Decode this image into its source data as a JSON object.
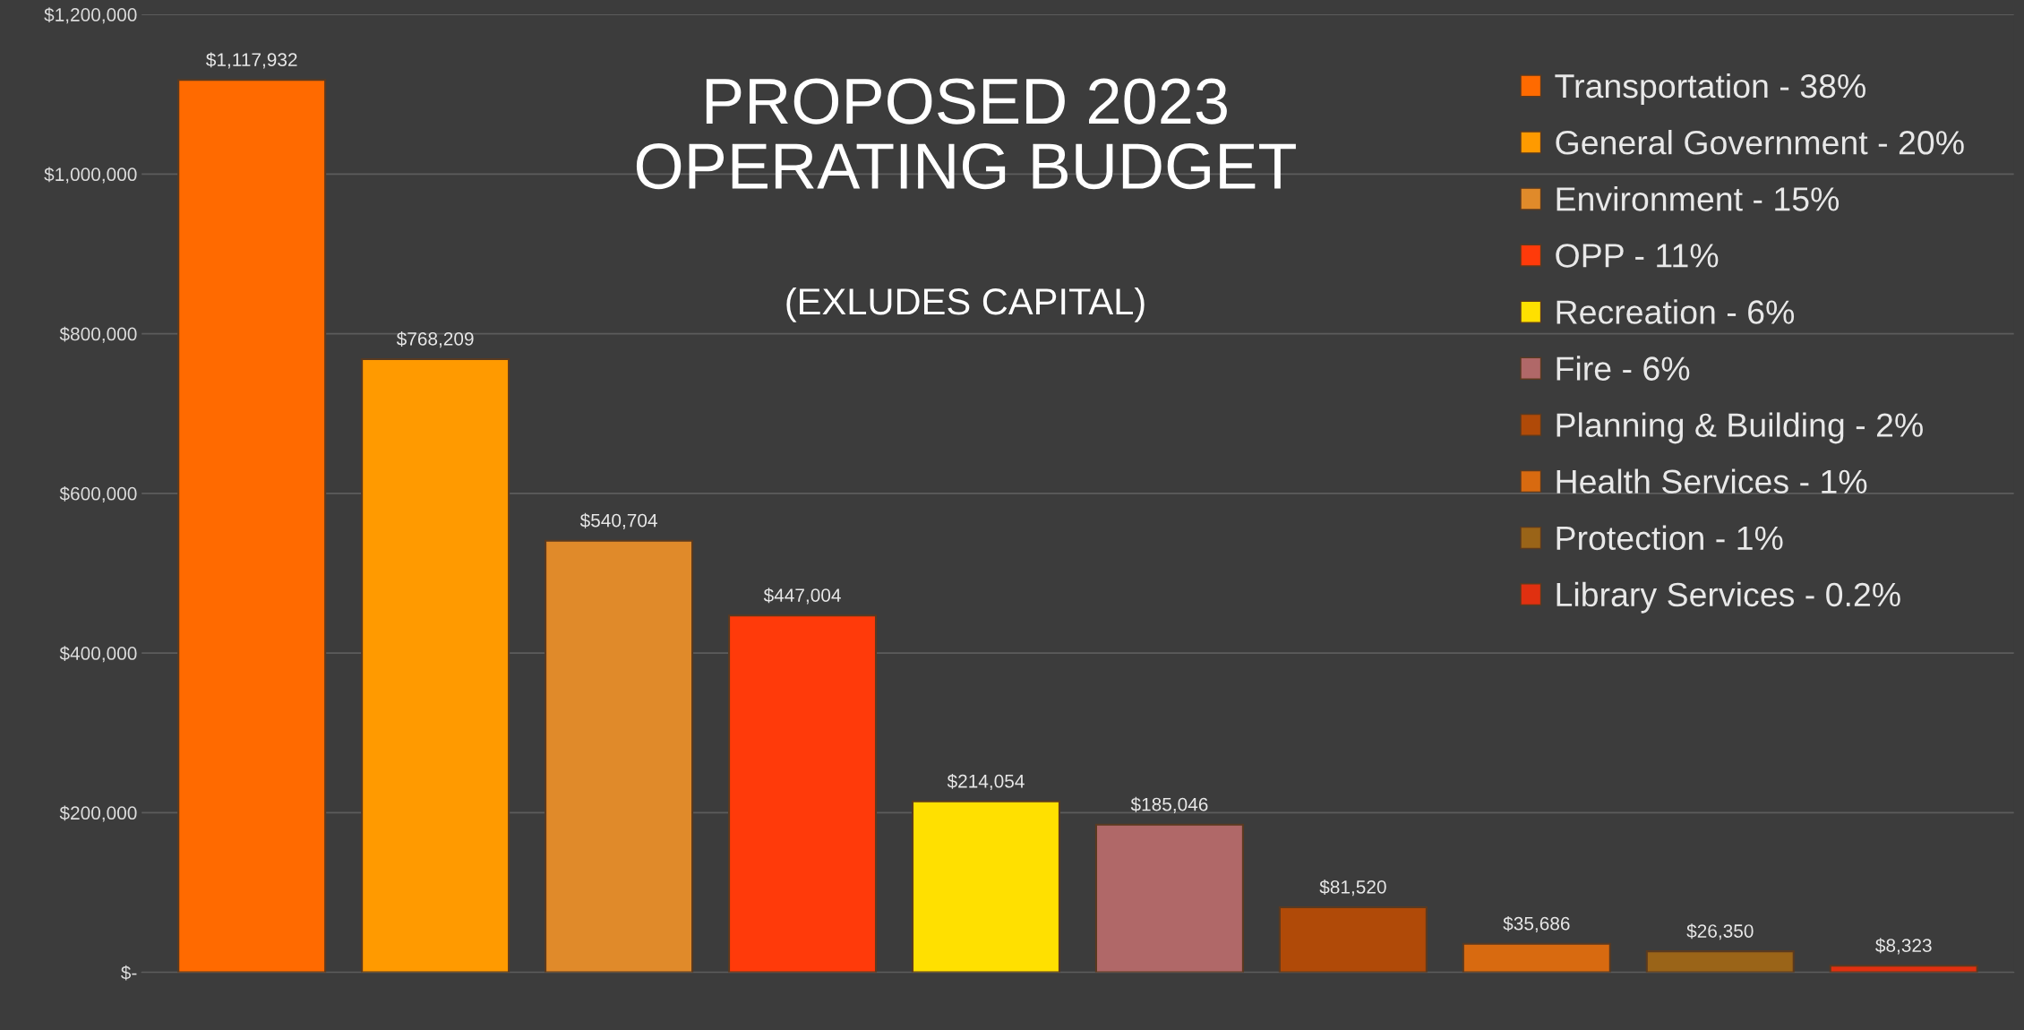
{
  "chart_data": {
    "type": "bar",
    "title": "PROPOSED 2023\nOPERATING BUDGET",
    "subtitle": "(EXLUDES CAPITAL)",
    "categories": [
      null,
      null,
      null,
      null,
      null,
      null,
      null,
      null,
      null,
      null
    ],
    "series": [
      {
        "name": "Transportation - 38%",
        "color": "#ff6a00",
        "values": [
          1117932,
          null,
          null,
          null,
          null,
          null,
          null,
          null,
          null,
          null
        ],
        "value_labels": [
          "$1,117,932",
          null,
          null,
          null,
          null,
          null,
          null,
          null,
          null,
          null
        ]
      },
      {
        "name": "General Government - 20%",
        "color": "#ff9a00",
        "values": [
          null,
          768209,
          null,
          null,
          null,
          null,
          null,
          null,
          null,
          null
        ],
        "value_labels": [
          null,
          "$768,209",
          null,
          null,
          null,
          null,
          null,
          null,
          null,
          null
        ]
      },
      {
        "name": "Environment - 15%",
        "color": "#e08a2a",
        "values": [
          null,
          null,
          540704,
          null,
          null,
          null,
          null,
          null,
          null,
          null
        ],
        "value_labels": [
          null,
          null,
          "$540,704",
          null,
          null,
          null,
          null,
          null,
          null,
          null
        ]
      },
      {
        "name": "OPP - 11%",
        "color": "#ff3a0a",
        "values": [
          null,
          null,
          null,
          447004,
          null,
          null,
          null,
          null,
          null,
          null
        ],
        "value_labels": [
          null,
          null,
          null,
          "$447,004",
          null,
          null,
          null,
          null,
          null,
          null
        ]
      },
      {
        "name": "Recreation - 6%",
        "color": "#ffe000",
        "values": [
          null,
          null,
          null,
          null,
          214054,
          null,
          null,
          null,
          null,
          null
        ],
        "value_labels": [
          null,
          null,
          null,
          null,
          "$214,054",
          null,
          null,
          null,
          null,
          null
        ]
      },
      {
        "name": "Fire - 6%",
        "color": "#b06868",
        "values": [
          null,
          null,
          null,
          null,
          null,
          185046,
          null,
          null,
          null,
          null
        ],
        "value_labels": [
          null,
          null,
          null,
          null,
          null,
          "$185,046",
          null,
          null,
          null,
          null
        ]
      },
      {
        "name": "Planning & Building - 2%",
        "color": "#b04a08",
        "values": [
          null,
          null,
          null,
          null,
          null,
          null,
          81520,
          null,
          null,
          null
        ],
        "value_labels": [
          null,
          null,
          null,
          null,
          null,
          null,
          "$81,520",
          null,
          null,
          null
        ]
      },
      {
        "name": "Health Services - 1%",
        "color": "#d86a10",
        "values": [
          null,
          null,
          null,
          null,
          null,
          null,
          null,
          35686,
          null,
          null
        ],
        "value_labels": [
          null,
          null,
          null,
          null,
          null,
          null,
          null,
          "$35,686",
          null,
          null
        ]
      },
      {
        "name": "Protection - 1%",
        "color": "#9a6418",
        "values": [
          null,
          null,
          null,
          null,
          null,
          null,
          null,
          null,
          26350,
          null
        ],
        "value_labels": [
          null,
          null,
          null,
          null,
          null,
          null,
          null,
          null,
          "$26,350",
          null
        ]
      },
      {
        "name": "Library Services - 0.2%",
        "color": "#e03010",
        "values": [
          null,
          null,
          null,
          null,
          null,
          null,
          null,
          null,
          null,
          8323
        ],
        "value_labels": [
          null,
          null,
          null,
          null,
          null,
          null,
          null,
          null,
          null,
          "$8,323"
        ]
      }
    ],
    "ylim": [
      0,
      1200000
    ],
    "yticks": [
      {
        "value": 0,
        "label": "$-"
      },
      {
        "value": 200000,
        "label": "$200,000"
      },
      {
        "value": 400000,
        "label": "$400,000"
      },
      {
        "value": 600000,
        "label": "$600,000"
      },
      {
        "value": 800000,
        "label": "$800,000"
      },
      {
        "value": 1000000,
        "label": "$1,000,000"
      },
      {
        "value": 1200000,
        "label": "$1,200,000"
      }
    ],
    "grid": "y",
    "legend": "top right"
  }
}
